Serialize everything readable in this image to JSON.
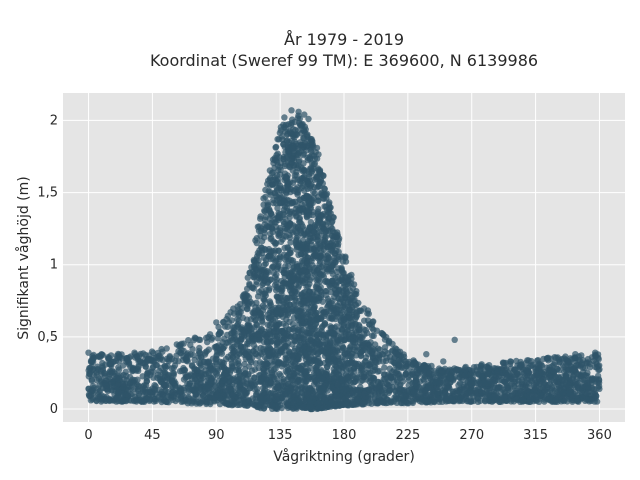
{
  "chart_data": {
    "type": "scatter",
    "title": "År 1979 - 2019",
    "subtitle": "Koordinat (Sweref 99 TM): E 369600, N 6139986",
    "xlabel": "Vågriktning (grader)",
    "ylabel": "Signifikant våghöjd (m)",
    "xlim": [
      -18,
      378
    ],
    "ylim": [
      -0.09,
      2.19
    ],
    "x_ticks": [
      0,
      45,
      90,
      135,
      180,
      225,
      270,
      315,
      360
    ],
    "x_tick_labels": [
      "0",
      "45",
      "90",
      "135",
      "180",
      "225",
      "270",
      "315",
      "360"
    ],
    "y_ticks": [
      0,
      0.5,
      1,
      1.5,
      2
    ],
    "y_tick_labels": [
      "0",
      "0,5",
      "1",
      "1,5",
      "2"
    ],
    "grid": true,
    "plot_background": "#e5e5e5",
    "grid_color": "#ffffff",
    "marker_color": "#2f5469",
    "distribution_profile": {
      "direction_deg": [
        0,
        45,
        90,
        110,
        125,
        135,
        145,
        150,
        160,
        175,
        190,
        205,
        225,
        250,
        270,
        315,
        360
      ],
      "max_height_m": [
        0.38,
        0.4,
        0.55,
        0.8,
        1.55,
        1.95,
        2.05,
        2.02,
        1.85,
        1.25,
        0.8,
        0.55,
        0.35,
        0.28,
        0.3,
        0.35,
        0.38
      ],
      "min_height_m": [
        0.05,
        0.05,
        0.03,
        0.02,
        0.0,
        0.0,
        0.0,
        0.0,
        0.0,
        0.02,
        0.03,
        0.04,
        0.04,
        0.05,
        0.05,
        0.05,
        0.05
      ]
    },
    "outliers": [
      {
        "x": 143,
        "y": 2.07
      },
      {
        "x": 148,
        "y": 2.06
      },
      {
        "x": 152,
        "y": 2.04
      },
      {
        "x": 138,
        "y": 2.02
      },
      {
        "x": 155,
        "y": 2.01
      },
      {
        "x": 258,
        "y": 0.48
      },
      {
        "x": 0,
        "y": 0.39
      },
      {
        "x": 357,
        "y": 0.39
      },
      {
        "x": 343,
        "y": 0.38
      },
      {
        "x": 338,
        "y": 0.33
      },
      {
        "x": 305,
        "y": 0.31
      },
      {
        "x": 277,
        "y": 0.31
      },
      {
        "x": 250,
        "y": 0.33
      },
      {
        "x": 238,
        "y": 0.38
      },
      {
        "x": 50,
        "y": 0.37
      },
      {
        "x": 95,
        "y": 0.6
      },
      {
        "x": 90,
        "y": 0.6
      },
      {
        "x": 98,
        "y": 0.57
      }
    ]
  }
}
